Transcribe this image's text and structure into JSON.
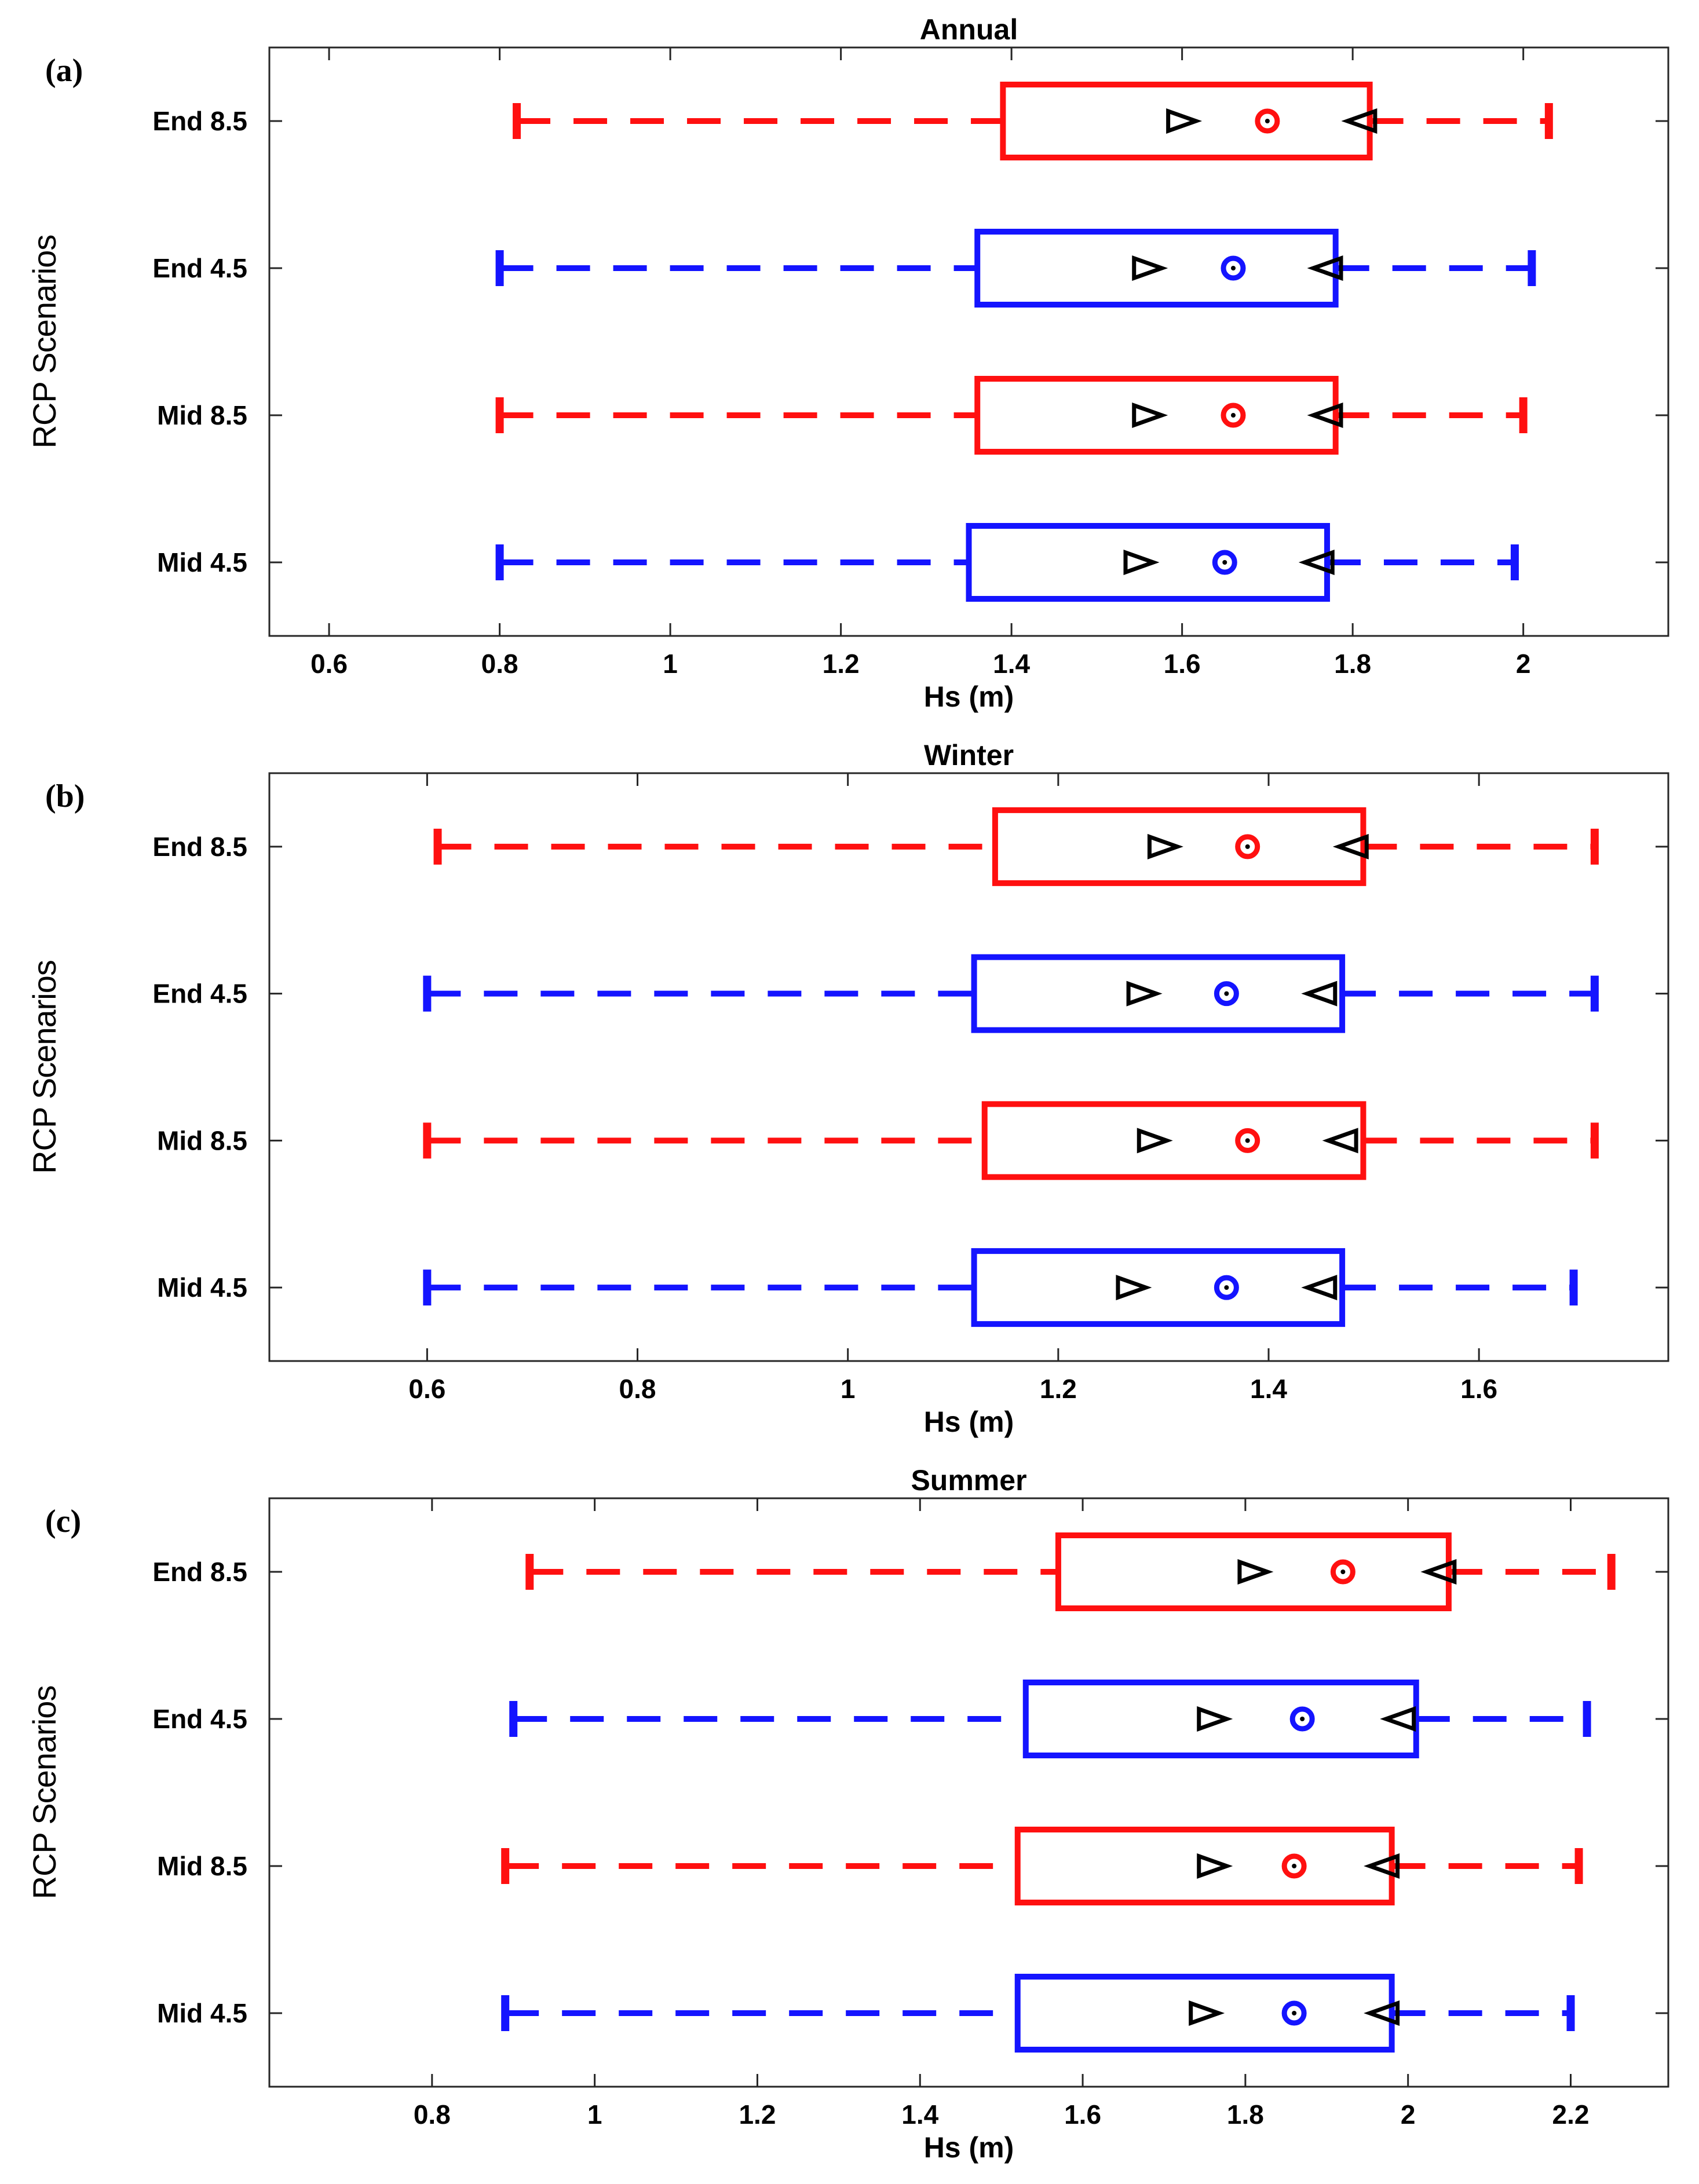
{
  "figure": {
    "ylabel": "RCP Scenarios",
    "xlabel": "Hs (m)"
  },
  "colors": {
    "red": "#ff1010",
    "blue": "#1414ff",
    "black": "#000000"
  },
  "chart_data": [
    {
      "type": "boxplot-horizontal",
      "panel_label": "(a)",
      "title": "Annual",
      "xlabel": "Hs (m)",
      "ylabel": "RCP Scenarios",
      "xlim": [
        0.53,
        2.17
      ],
      "xticks": [
        0.6,
        0.8,
        1,
        1.2,
        1.4,
        1.6,
        1.8,
        2
      ],
      "xtick_labels": [
        "0.6",
        "0.8",
        "1",
        "1.2",
        "1.4",
        "1.6",
        "1.8",
        "2"
      ],
      "categories": [
        "End 8.5",
        "End 4.5",
        "Mid 8.5",
        "Mid 4.5"
      ],
      "series": [
        {
          "name": "End 8.5",
          "color": "red",
          "min": 0.82,
          "q1": 1.39,
          "median": 1.7,
          "q3": 1.82,
          "max": 2.03,
          "notch_low": 1.6,
          "notch_high": 1.81
        },
        {
          "name": "End 4.5",
          "color": "blue",
          "min": 0.8,
          "q1": 1.36,
          "median": 1.66,
          "q3": 1.78,
          "max": 2.01,
          "notch_low": 1.56,
          "notch_high": 1.77
        },
        {
          "name": "Mid 8.5",
          "color": "red",
          "min": 0.8,
          "q1": 1.36,
          "median": 1.66,
          "q3": 1.78,
          "max": 2.0,
          "notch_low": 1.56,
          "notch_high": 1.77
        },
        {
          "name": "Mid 4.5",
          "color": "blue",
          "min": 0.8,
          "q1": 1.35,
          "median": 1.65,
          "q3": 1.77,
          "max": 1.99,
          "notch_low": 1.55,
          "notch_high": 1.76
        }
      ]
    },
    {
      "type": "boxplot-horizontal",
      "panel_label": "(b)",
      "title": "Winter",
      "xlabel": "Hs (m)",
      "ylabel": "RCP Scenarios",
      "xlim": [
        0.45,
        1.78
      ],
      "xticks": [
        0.6,
        0.8,
        1,
        1.2,
        1.4,
        1.6
      ],
      "xtick_labels": [
        "0.6",
        "0.8",
        "1",
        "1.2",
        "1.4",
        "1.6"
      ],
      "categories": [
        "End 8.5",
        "End 4.5",
        "Mid 8.5",
        "Mid 4.5"
      ],
      "series": [
        {
          "name": "End 8.5",
          "color": "red",
          "min": 0.61,
          "q1": 1.14,
          "median": 1.38,
          "q3": 1.49,
          "max": 1.71,
          "notch_low": 1.3,
          "notch_high": 1.48
        },
        {
          "name": "End 4.5",
          "color": "blue",
          "min": 0.6,
          "q1": 1.12,
          "median": 1.36,
          "q3": 1.47,
          "max": 1.71,
          "notch_low": 1.28,
          "notch_high": 1.45
        },
        {
          "name": "Mid 8.5",
          "color": "red",
          "min": 0.6,
          "q1": 1.13,
          "median": 1.38,
          "q3": 1.49,
          "max": 1.71,
          "notch_low": 1.29,
          "notch_high": 1.47
        },
        {
          "name": "Mid 4.5",
          "color": "blue",
          "min": 0.6,
          "q1": 1.12,
          "median": 1.36,
          "q3": 1.47,
          "max": 1.69,
          "notch_low": 1.27,
          "notch_high": 1.45
        }
      ]
    },
    {
      "type": "boxplot-horizontal",
      "panel_label": "(c)",
      "title": "Summer",
      "xlabel": "Hs (m)",
      "ylabel": "RCP Scenarios",
      "xlim": [
        0.6,
        2.32
      ],
      "xticks": [
        0.8,
        1,
        1.2,
        1.4,
        1.6,
        1.8,
        2,
        2.2
      ],
      "xtick_labels": [
        "0.8",
        "1",
        "1.2",
        "1.4",
        "1.6",
        "1.8",
        "2",
        "2.2"
      ],
      "categories": [
        "End 8.5",
        "End 4.5",
        "Mid 8.5",
        "Mid 4.5"
      ],
      "series": [
        {
          "name": "End 8.5",
          "color": "red",
          "min": 0.92,
          "q1": 1.57,
          "median": 1.92,
          "q3": 2.05,
          "max": 2.25,
          "notch_low": 1.81,
          "notch_high": 2.04
        },
        {
          "name": "End 4.5",
          "color": "blue",
          "min": 0.9,
          "q1": 1.53,
          "median": 1.87,
          "q3": 2.01,
          "max": 2.22,
          "notch_low": 1.76,
          "notch_high": 1.99
        },
        {
          "name": "Mid 8.5",
          "color": "red",
          "min": 0.89,
          "q1": 1.52,
          "median": 1.86,
          "q3": 1.98,
          "max": 2.21,
          "notch_low": 1.76,
          "notch_high": 1.97
        },
        {
          "name": "Mid 4.5",
          "color": "blue",
          "min": 0.89,
          "q1": 1.52,
          "median": 1.86,
          "q3": 1.98,
          "max": 2.2,
          "notch_low": 1.75,
          "notch_high": 1.97
        }
      ]
    }
  ]
}
